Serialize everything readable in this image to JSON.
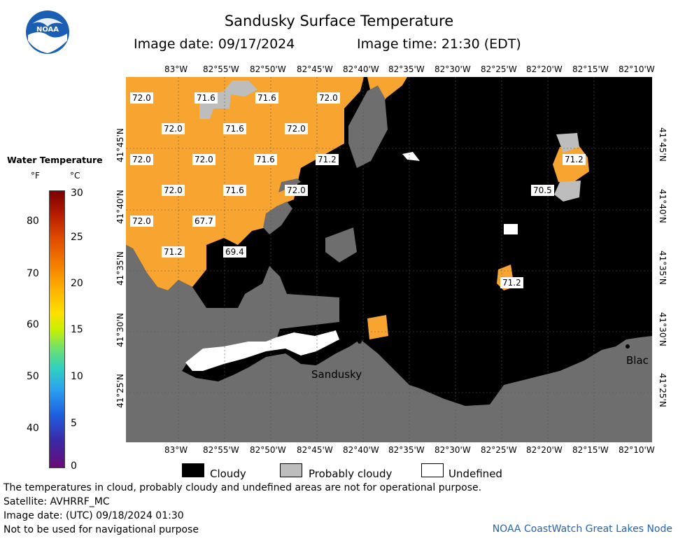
{
  "header": {
    "title": "Sandusky Surface Temperature",
    "image_date": "Image date: 09/17/2024",
    "image_time": "Image time: 21:30 (EDT)",
    "logo_text": "NOAA"
  },
  "map": {
    "lon_labels": [
      "83°W",
      "82°55'W",
      "82°50'W",
      "82°45'W",
      "82°40'W",
      "82°35'W",
      "82°30'W",
      "82°25'W",
      "82°20'W",
      "82°15'W",
      "82°10'W"
    ],
    "lat_labels": [
      "41°45'N",
      "41°40'N",
      "41°35'N",
      "41°30'N",
      "41°25'N"
    ],
    "temps": [
      "72.0",
      "71.6",
      "71.6",
      "72.0",
      "72.0",
      "71.6",
      "72.0",
      "72.0",
      "72.0",
      "71.6",
      "71.2",
      "72.0",
      "71.6",
      "72.0",
      "72.0",
      "67.7",
      "71.2",
      "69.4",
      "71.2",
      "70.5",
      "71.2"
    ],
    "places": [
      "Sandusky",
      "Blac"
    ]
  },
  "legend": {
    "title": "Water Temperature",
    "unit_f": "°F",
    "unit_c": "°C",
    "f_ticks": [
      "80",
      "70",
      "60",
      "50",
      "40"
    ],
    "c_ticks": [
      "30",
      "25",
      "20",
      "15",
      "10",
      "5",
      "0"
    ],
    "colors": {
      "cloudy": "#000000",
      "probably_cloudy": "#bdbdbd",
      "undefined": "#ffffff",
      "land": "#6e6e6e",
      "warm_water": "#f7a430"
    }
  },
  "key": {
    "cloudy": "Cloudy",
    "probably_cloudy": "Probably cloudy",
    "undefined": "Undefined"
  },
  "footer": {
    "note": "The temperatures in cloud, probably cloudy and undefined areas are not for operational purpose.",
    "satellite": "Satellite: AVHRRF_MC",
    "utc_date": "Image date: (UTC) 09/18/2024  01:30",
    "nav_warning": "Not to be used for navigational purpose",
    "credit": "NOAA CoastWatch Great Lakes Node"
  }
}
